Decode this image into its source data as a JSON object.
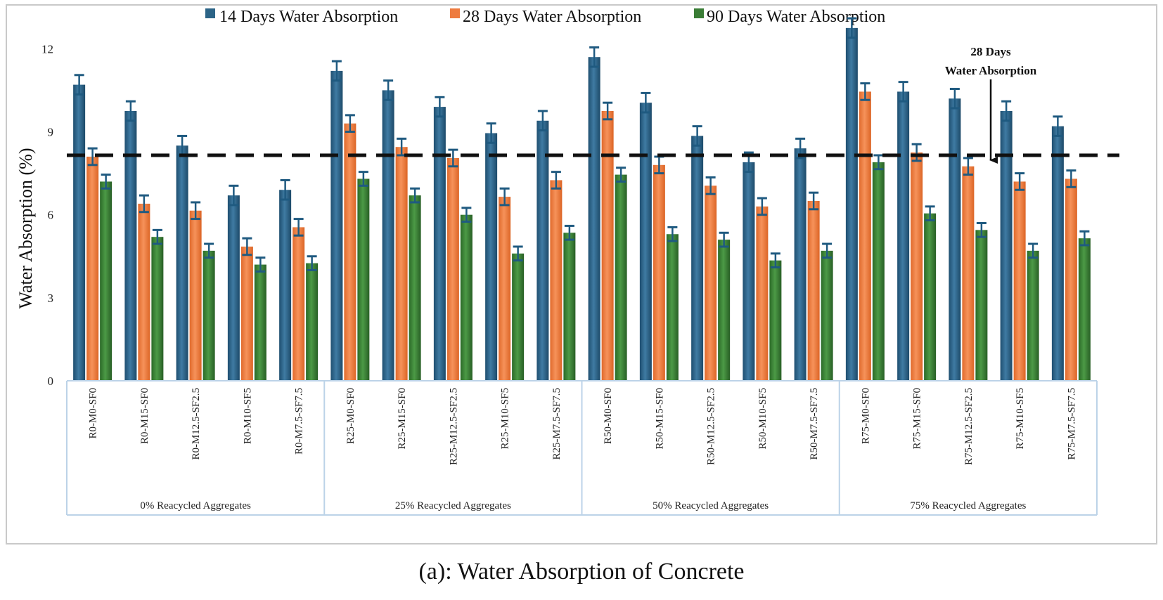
{
  "caption": "(a): Water Absorption of Concrete",
  "chart_data": {
    "type": "bar",
    "title": "",
    "xlabel": "",
    "ylabel": "Water Absorption (%)",
    "ylim": [
      0,
      13
    ],
    "yticks": [
      0,
      3,
      6,
      9,
      12
    ],
    "legend_position": "top",
    "categories": [
      "R0-M0-SF0",
      "R0-M15-SF0",
      "R0-M12.5-SF2.5",
      "R0-M10-SF5",
      "R0-M7.5-SF7.5",
      "R25-M0-SF0",
      "R25-M15-SF0",
      "R25-M12.5-SF2.5",
      "R25-M10-SF5",
      "R25-M7.5-SF7.5",
      "R50-M0-SF0",
      "R50-M15-SF0",
      "R50-M12.5-SF2.5",
      "R50-M10-SF5",
      "R50-M7.5-SF7.5",
      "R75-M0-SF0",
      "R75-M15-SF0",
      "R75-M12.5-SF2.5",
      "R75-M10-SF5",
      "R75-M7.5-SF7.5"
    ],
    "groups": [
      {
        "label": "0% Reacycled Aggregates",
        "count": 5
      },
      {
        "label": "25% Reacycled Aggregates",
        "count": 5
      },
      {
        "label": "50% Reacycled Aggregates",
        "count": 5
      },
      {
        "label": "75% Reacycled Aggregates",
        "count": 5
      }
    ],
    "series": [
      {
        "name": "14 Days Water Absorption",
        "color": "#2c6487",
        "values": [
          10.7,
          9.75,
          8.5,
          6.7,
          6.9,
          11.2,
          10.5,
          9.9,
          8.95,
          9.4,
          11.7,
          10.05,
          8.85,
          7.9,
          8.4,
          12.75,
          10.45,
          10.2,
          9.75,
          9.2
        ],
        "errors": [
          0.35,
          0.35,
          0.35,
          0.35,
          0.35,
          0.35,
          0.35,
          0.35,
          0.35,
          0.35,
          0.35,
          0.35,
          0.35,
          0.35,
          0.35,
          0.35,
          0.35,
          0.35,
          0.35,
          0.35
        ]
      },
      {
        "name": "28 Days Water Absorption",
        "color": "#ee7b3f",
        "values": [
          8.1,
          6.4,
          6.15,
          4.85,
          5.55,
          9.3,
          8.45,
          8.05,
          6.65,
          7.25,
          9.75,
          7.8,
          7.05,
          6.3,
          6.5,
          10.45,
          8.25,
          7.75,
          7.2,
          7.3
        ],
        "errors": [
          0.3,
          0.3,
          0.3,
          0.3,
          0.3,
          0.3,
          0.3,
          0.3,
          0.3,
          0.3,
          0.3,
          0.3,
          0.3,
          0.3,
          0.3,
          0.3,
          0.3,
          0.3,
          0.3,
          0.3
        ]
      },
      {
        "name": "90 Days Water Absorption",
        "color": "#3a7d36",
        "values": [
          7.2,
          5.2,
          4.7,
          4.2,
          4.25,
          7.3,
          6.7,
          6.0,
          4.6,
          5.35,
          7.45,
          5.3,
          5.1,
          4.35,
          4.7,
          7.9,
          6.05,
          5.45,
          4.7,
          5.15
        ],
        "errors": [
          0.25,
          0.25,
          0.25,
          0.25,
          0.25,
          0.25,
          0.25,
          0.25,
          0.25,
          0.25,
          0.25,
          0.25,
          0.25,
          0.25,
          0.25,
          0.25,
          0.25,
          0.25,
          0.25,
          0.25
        ]
      }
    ],
    "reference_line": {
      "value": 8.15,
      "style": "dashed",
      "color": "#111111"
    },
    "annotation": {
      "line1": "28 Days",
      "line2": "Water Absorption",
      "target_category": "R75-M12.5-SF2.5"
    }
  }
}
